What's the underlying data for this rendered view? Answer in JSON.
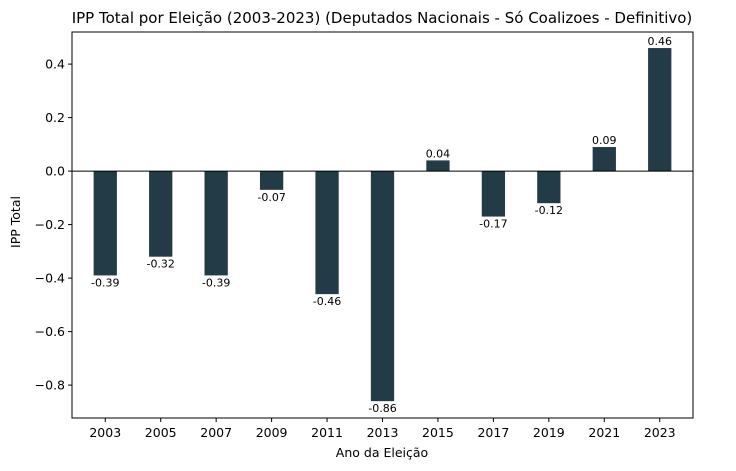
{
  "chart_data": {
    "type": "bar",
    "title": "IPP Total por Eleição (2003-2023) (Deputados Nacionais - Só Coalizoes - Definitivo)",
    "xlabel": "Ano da Eleição",
    "ylabel": "IPP Total",
    "categories": [
      "2003",
      "2005",
      "2007",
      "2009",
      "2011",
      "2013",
      "2015",
      "2017",
      "2019",
      "2021",
      "2023"
    ],
    "values": [
      -0.39,
      -0.32,
      -0.39,
      -0.07,
      -0.46,
      -0.86,
      0.04,
      -0.17,
      -0.12,
      0.09,
      0.46
    ],
    "data_labels": [
      "-0.39",
      "-0.32",
      "-0.39",
      "-0.07",
      "-0.46",
      "-0.86",
      "0.04",
      "-0.17",
      "-0.12",
      "0.09",
      "0.46"
    ],
    "yticks": [
      0.4,
      0.2,
      0.0,
      -0.2,
      -0.4,
      -0.6,
      -0.8
    ],
    "ytick_labels": [
      "0.4",
      "0.2",
      "0.0",
      "−0.2",
      "−0.4",
      "−0.6",
      "−0.8"
    ],
    "ylim": [
      -0.923,
      0.52
    ],
    "grid": false,
    "bar_color": "#233a47",
    "zero_line": true
  }
}
